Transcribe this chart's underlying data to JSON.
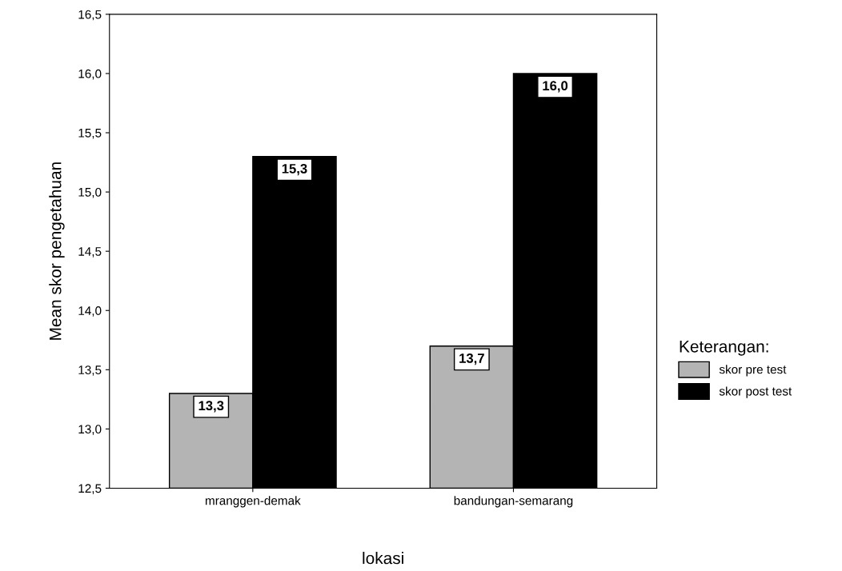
{
  "chart_data": {
    "type": "bar",
    "xlabel": "lokasi",
    "ylabel": "Mean skor pengetahuan",
    "legend_title": "Keterangan:",
    "legend": "right",
    "grid": false,
    "categories": [
      "mranggen-demak",
      "bandungan-semarang"
    ],
    "series": [
      {
        "name": "skor pre test",
        "color": "#b4b4b4",
        "values": [
          13.3,
          13.7
        ],
        "value_labels": [
          "13,3",
          "13,7"
        ]
      },
      {
        "name": "skor post test",
        "color": "#000000",
        "values": [
          15.3,
          16.0
        ],
        "value_labels": [
          "15,3",
          "16,0"
        ]
      }
    ],
    "ylim": [
      12.5,
      16.5
    ],
    "yticks": [
      {
        "value": 12.5,
        "label": "12,5"
      },
      {
        "value": 13.0,
        "label": "13,0"
      },
      {
        "value": 13.5,
        "label": "13,5"
      },
      {
        "value": 14.0,
        "label": "14,0"
      },
      {
        "value": 14.5,
        "label": "14,5"
      },
      {
        "value": 15.0,
        "label": "15,0"
      },
      {
        "value": 15.5,
        "label": "15,5"
      },
      {
        "value": 16.0,
        "label": "16,0"
      },
      {
        "value": 16.5,
        "label": "16,5"
      }
    ]
  }
}
